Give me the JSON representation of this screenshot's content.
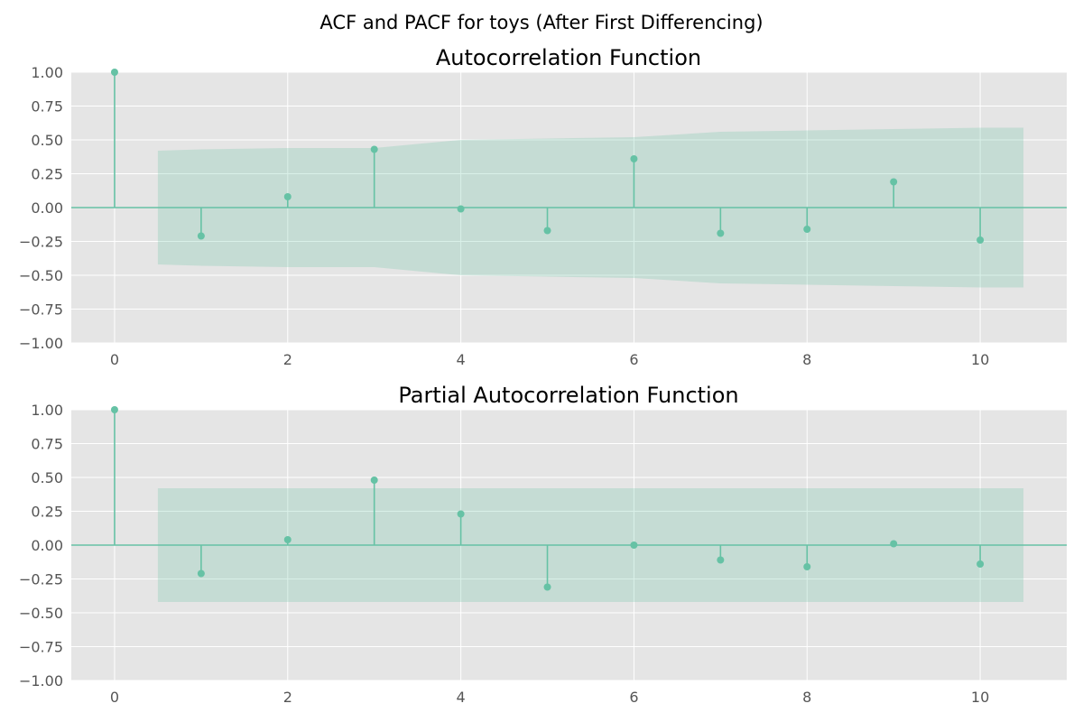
{
  "figure": {
    "title": "ACF and PACF for toys (After First Differencing)"
  },
  "style": {
    "axes_background": "#e5e5e5",
    "grid_color": "#ffffff",
    "stem_color": "#66c2a5",
    "confidence_fill": "#66c2a5",
    "confidence_alpha": 0.25,
    "tick_label_color": "#555555",
    "text_color": "#000000"
  },
  "chart_data": [
    {
      "type": "stem",
      "title": "Autocorrelation Function",
      "xlabel": "",
      "ylabel": "",
      "xlim": [
        -0.5,
        11
      ],
      "ylim": [
        -1.0,
        1.0
      ],
      "grid": true,
      "x_ticks": [
        0,
        2,
        4,
        6,
        8,
        10
      ],
      "y_ticks": [
        -1.0,
        -0.75,
        -0.5,
        -0.25,
        0.0,
        0.25,
        0.5,
        0.75,
        1.0
      ],
      "x_tick_labels": [
        "0",
        "2",
        "4",
        "6",
        "8",
        "10"
      ],
      "y_tick_labels": [
        "−1.00",
        "−0.75",
        "−0.50",
        "−0.25",
        "0.00",
        "0.25",
        "0.50",
        "0.75",
        "1.00"
      ],
      "lags": [
        0,
        1,
        2,
        3,
        4,
        5,
        6,
        7,
        8,
        9,
        10
      ],
      "values": [
        1.0,
        -0.21,
        0.08,
        0.43,
        -0.01,
        -0.17,
        0.36,
        -0.19,
        -0.16,
        0.19,
        -0.24
      ],
      "confidence_band": {
        "x": [
          0.5,
          1,
          2,
          3,
          4,
          5,
          6,
          7,
          8,
          9,
          10,
          10.5
        ],
        "upper": [
          0.42,
          0.43,
          0.44,
          0.44,
          0.5,
          0.51,
          0.52,
          0.56,
          0.57,
          0.58,
          0.59,
          0.59
        ]
      }
    },
    {
      "type": "stem",
      "title": "Partial Autocorrelation Function",
      "xlabel": "",
      "ylabel": "",
      "xlim": [
        -0.5,
        11
      ],
      "ylim": [
        -1.0,
        1.0
      ],
      "grid": true,
      "x_ticks": [
        0,
        2,
        4,
        6,
        8,
        10
      ],
      "y_ticks": [
        -1.0,
        -0.75,
        -0.5,
        -0.25,
        0.0,
        0.25,
        0.5,
        0.75,
        1.0
      ],
      "x_tick_labels": [
        "0",
        "2",
        "4",
        "6",
        "8",
        "10"
      ],
      "y_tick_labels": [
        "−1.00",
        "−0.75",
        "−0.50",
        "−0.25",
        "0.00",
        "0.25",
        "0.50",
        "0.75",
        "1.00"
      ],
      "lags": [
        0,
        1,
        2,
        3,
        4,
        5,
        6,
        7,
        8,
        9,
        10
      ],
      "values": [
        1.0,
        -0.21,
        0.04,
        0.48,
        0.23,
        -0.31,
        0.0,
        -0.11,
        -0.16,
        0.01,
        -0.14
      ],
      "confidence_band": {
        "x": [
          0.5,
          10.5
        ],
        "upper": [
          0.42,
          0.42
        ]
      }
    }
  ]
}
